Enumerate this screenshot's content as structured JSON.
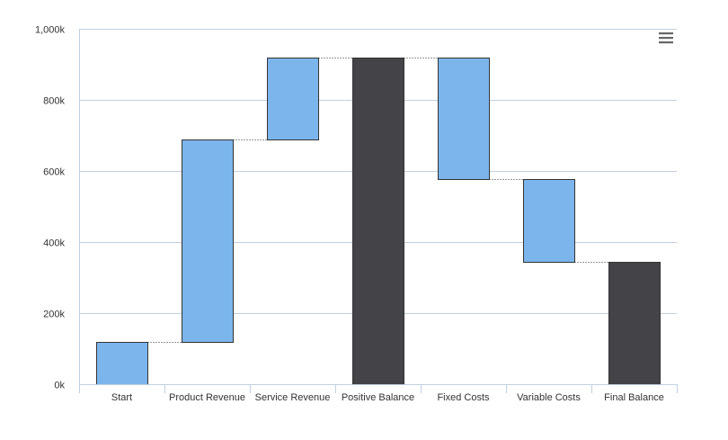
{
  "chart_data": {
    "type": "waterfall",
    "title": "",
    "xlabel": "",
    "ylabel": "",
    "ylim": [
      0,
      1000000
    ],
    "yticks": [
      0,
      200000,
      400000,
      600000,
      800000,
      1000000
    ],
    "ytick_labels": [
      "0k",
      "200k",
      "400k",
      "600k",
      "800k",
      "1,000k"
    ],
    "categories": [
      "Start",
      "Product Revenue",
      "Service Revenue",
      "Positive Balance",
      "Fixed Costs",
      "Variable Costs",
      "Final Balance"
    ],
    "values": [
      120000,
      569000,
      231000,
      920000,
      -342000,
      -233000,
      345000
    ],
    "is_sum": [
      false,
      false,
      false,
      true,
      false,
      false,
      true
    ],
    "grid": true,
    "legend": "none",
    "colors": {
      "increment": "#7cb5ec",
      "sum": "#434348",
      "connector": "#333333",
      "grid": "#c0d0e0",
      "axis": "#c0d0e0"
    }
  },
  "menu": {
    "icon": "hamburger-menu-icon"
  }
}
